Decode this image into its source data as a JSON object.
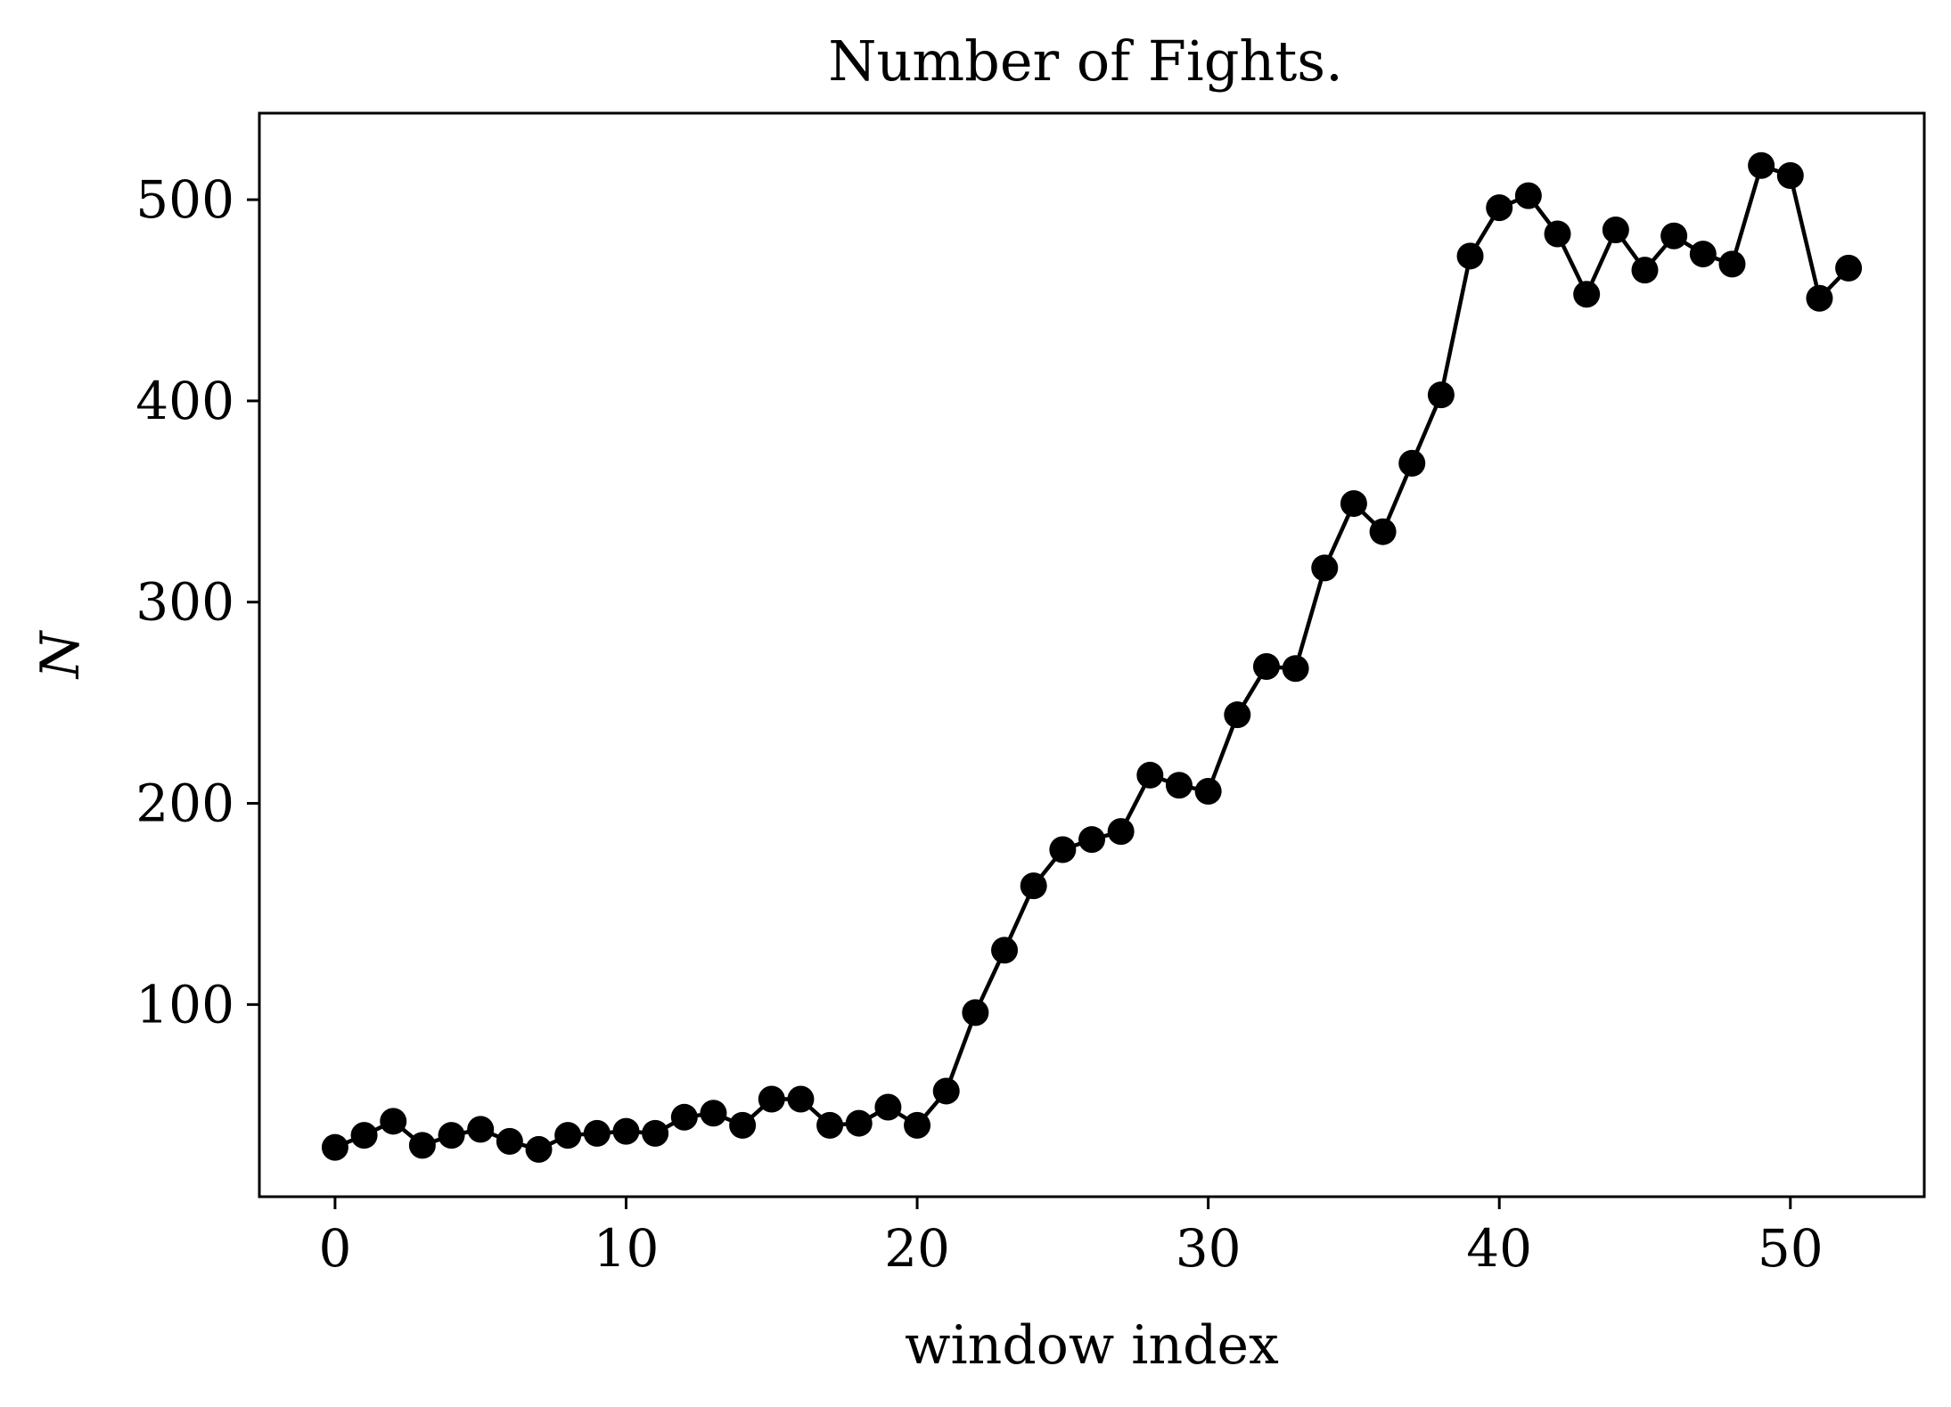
{
  "chart_data": {
    "type": "line",
    "title": "Number of Fights.",
    "xlabel": "window index",
    "ylabel": "N",
    "xlim": [
      -2.6,
      54.6
    ],
    "ylim": [
      4.5,
      543
    ],
    "xticks": [
      0,
      10,
      20,
      30,
      40,
      50
    ],
    "yticks": [
      100,
      200,
      300,
      400,
      500
    ],
    "grid": false,
    "legend": "none",
    "line_color": "#000000",
    "marker": "circle",
    "x": [
      0,
      1,
      2,
      3,
      4,
      5,
      6,
      7,
      8,
      9,
      10,
      11,
      12,
      13,
      14,
      15,
      16,
      17,
      18,
      19,
      20,
      21,
      22,
      23,
      24,
      25,
      26,
      27,
      28,
      29,
      30,
      31,
      32,
      33,
      34,
      35,
      36,
      37,
      38,
      39,
      40,
      41,
      42,
      43,
      44,
      45,
      46,
      47,
      48,
      49,
      50,
      51,
      52
    ],
    "y": [
      29,
      35,
      42,
      30,
      35,
      38,
      32,
      28,
      35,
      36,
      37,
      36,
      44,
      46,
      40,
      53,
      53,
      40,
      41,
      49,
      40,
      57,
      96,
      127,
      159,
      177,
      182,
      186,
      214,
      209,
      206,
      244,
      268,
      267,
      317,
      349,
      335,
      369,
      403,
      472,
      496,
      502,
      483,
      453,
      485,
      465,
      482,
      473,
      468,
      517,
      512,
      451,
      466
    ]
  }
}
